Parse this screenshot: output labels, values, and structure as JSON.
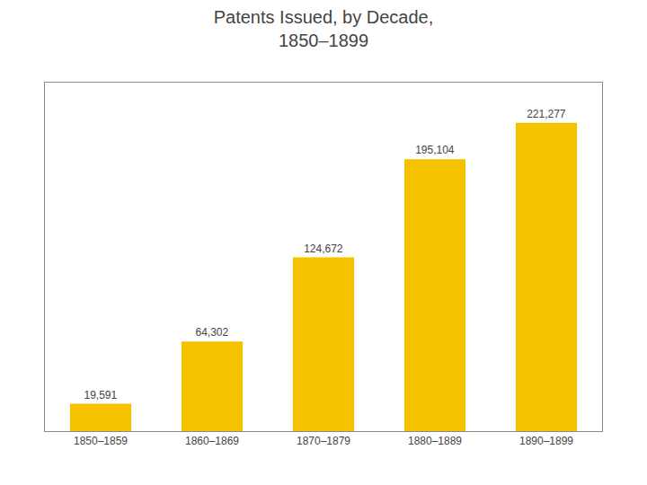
{
  "chart_data": {
    "type": "bar",
    "title": "Patents Issued, by Decade,\n1850–1899",
    "categories": [
      "1850–1859",
      "1860–1869",
      "1870–1879",
      "1880–1889",
      "1890–1899"
    ],
    "values": [
      19591,
      64302,
      124672,
      195104,
      221277
    ],
    "value_labels": [
      "19,591",
      "64,302",
      "124,672",
      "195,104",
      "221,277"
    ],
    "color": "#F5C200",
    "ylim": [
      0,
      250043.01
    ],
    "grid": false,
    "data_labels": true,
    "tick_labels": "x"
  }
}
